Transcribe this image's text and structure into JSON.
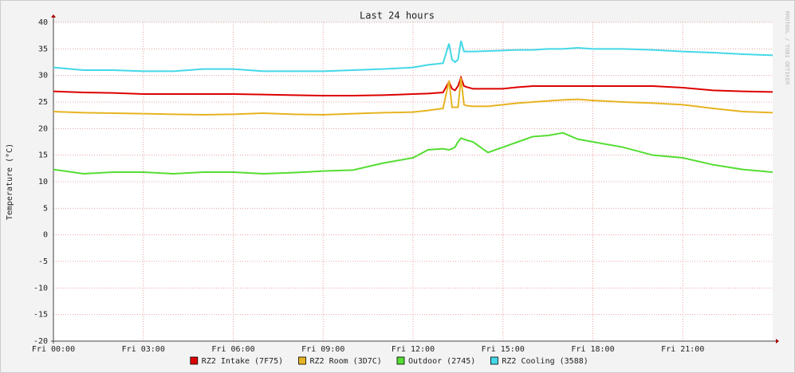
{
  "chart_data": {
    "type": "line",
    "title": "Last 24 hours",
    "y_label": "Temperature (°C)",
    "watermark": "RRDTOOL / TOBI OETIKER",
    "x": [
      0,
      1,
      2,
      3,
      4,
      5,
      6,
      7,
      8,
      9,
      10,
      11,
      12,
      12.5,
      13,
      13.2,
      13.3,
      13.4,
      13.5,
      13.6,
      13.7,
      13.8,
      14,
      14.5,
      15,
      15.5,
      16,
      16.5,
      17,
      17.5,
      18,
      19,
      20,
      21,
      22,
      23,
      24
    ],
    "xlim": [
      0,
      24
    ],
    "xticks": [
      {
        "value": 0,
        "label": "Fri 00:00"
      },
      {
        "value": 3,
        "label": "Fri 03:00"
      },
      {
        "value": 6,
        "label": "Fri 06:00"
      },
      {
        "value": 9,
        "label": "Fri 09:00"
      },
      {
        "value": 12,
        "label": "Fri 12:00"
      },
      {
        "value": 15,
        "label": "Fri 15:00"
      },
      {
        "value": 18,
        "label": "Fri 18:00"
      },
      {
        "value": 21,
        "label": "Fri 21:00"
      }
    ],
    "ylim": [
      -20,
      40
    ],
    "yticks": [
      -20,
      -15,
      -10,
      -5,
      0,
      5,
      10,
      15,
      20,
      25,
      30,
      35,
      40
    ],
    "grid": true,
    "legend": "bottom",
    "series": [
      {
        "name": "RZ2 Intake (7F75)",
        "color": "#dd0000",
        "values": [
          27,
          26.8,
          26.7,
          26.5,
          26.5,
          26.5,
          26.5,
          26.4,
          26.3,
          26.2,
          26.2,
          26.3,
          26.5,
          26.6,
          26.8,
          28.8,
          27.5,
          27.2,
          28,
          29.6,
          28,
          27.8,
          27.5,
          27.5,
          27.5,
          27.8,
          28,
          28,
          28,
          28,
          28,
          28,
          28,
          27.7,
          27.2,
          27,
          26.9
        ]
      },
      {
        "name": "RZ2 Room (3D7C)",
        "color": "#e6b422",
        "values": [
          23.2,
          23,
          22.9,
          22.8,
          22.7,
          22.6,
          22.7,
          22.9,
          22.7,
          22.6,
          22.8,
          23,
          23.1,
          23.4,
          23.8,
          29,
          24,
          24,
          24,
          29.5,
          24.5,
          24.3,
          24.2,
          24.2,
          24.5,
          24.8,
          25,
          25.2,
          25.4,
          25.5,
          25.3,
          25,
          24.8,
          24.5,
          23.8,
          23.2,
          23
        ]
      },
      {
        "name": "Outdoor (2745)",
        "color": "#55dd33",
        "values": [
          12.3,
          11.5,
          11.8,
          11.8,
          11.5,
          11.8,
          11.8,
          11.5,
          11.7,
          12,
          12.2,
          13.5,
          14.5,
          16,
          16.2,
          16,
          16.2,
          16.5,
          17.5,
          18.2,
          18,
          17.8,
          17.5,
          15.5,
          16.5,
          17.5,
          18.5,
          18.7,
          19.2,
          18,
          17.5,
          16.5,
          15,
          14.5,
          13.2,
          12.3,
          11.8
        ]
      },
      {
        "name": "RZ2 Cooling (3588)",
        "color": "#44d8e8",
        "values": [
          31.5,
          31,
          31,
          30.8,
          30.8,
          31.2,
          31.2,
          30.8,
          30.8,
          30.8,
          31,
          31.2,
          31.5,
          32,
          32.3,
          36,
          33,
          32.5,
          33,
          36.5,
          34.5,
          34.5,
          34.5,
          34.6,
          34.7,
          34.8,
          34.8,
          35,
          35,
          35.2,
          35,
          35,
          34.8,
          34.5,
          34.3,
          34,
          33.8
        ]
      }
    ]
  }
}
